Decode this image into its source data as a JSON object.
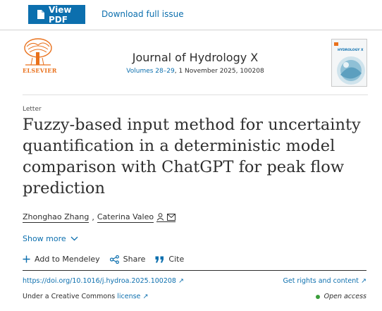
{
  "toolbar": {
    "view_pdf_label": "View PDF",
    "download_label": "Download full issue"
  },
  "journal": {
    "publisher": "ELSEVIER",
    "title": "Journal of Hydrology X",
    "volumes": "Volumes 28–29",
    "issue_rest": ", 1 November 2025, 100208",
    "cover_text": "HYDROLOGY X"
  },
  "article": {
    "type": "Letter",
    "title": "Fuzzy-based input method for uncertainty quantification in a deterministic model comparison with ChatGPT for peak flow prediction",
    "authors": [
      "Zhonghao Zhang",
      "Caterina Valeo"
    ],
    "show_more": "Show more"
  },
  "actions": {
    "mendeley": "Add to Mendeley",
    "share": "Share",
    "cite": "Cite"
  },
  "links": {
    "doi": "https://doi.org/10.1016/j.hydroa.2025.100208",
    "rights": "Get rights and content",
    "cc_prefix": "Under a Creative Commons ",
    "license": "license",
    "open_access": "Open access"
  },
  "colors": {
    "brand_blue": "#0c6fae",
    "elsevier_orange": "#e9711c",
    "open_access_green": "#3a9d3a"
  }
}
